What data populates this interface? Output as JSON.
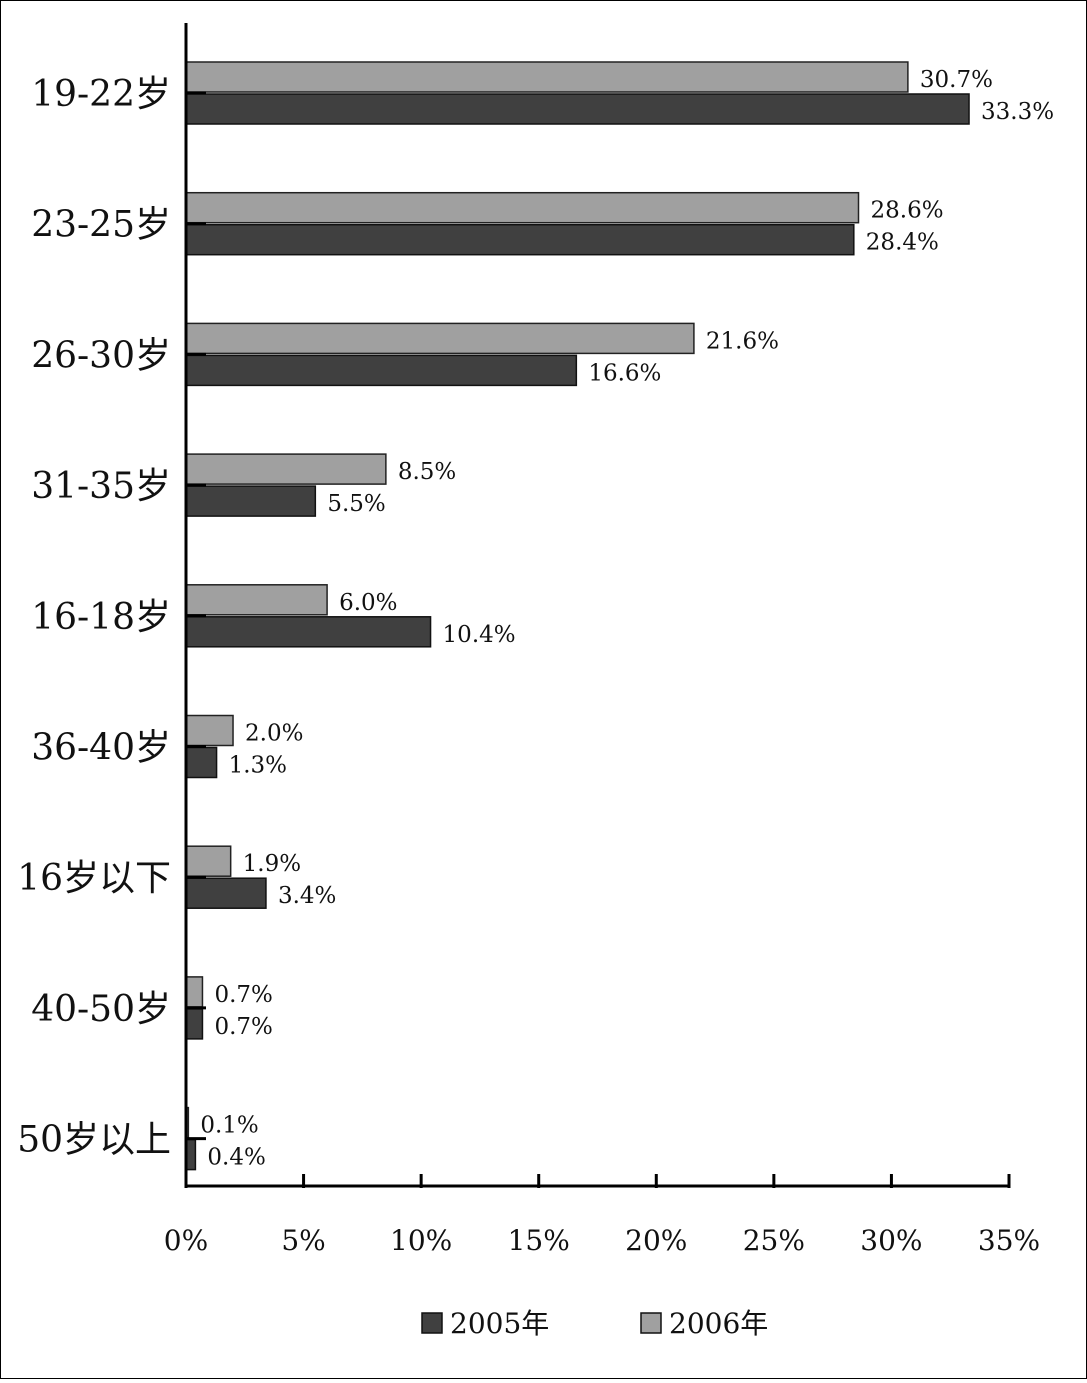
{
  "chart_data": {
    "type": "bar",
    "orientation": "horizontal",
    "categories": [
      "19-22岁",
      "23-25岁",
      "26-30岁",
      "31-35岁",
      "16-18岁",
      "36-40岁",
      "16岁以下",
      "40-50岁",
      "50岁以上"
    ],
    "series": [
      {
        "name": "2006年",
        "color": "#a0a0a0",
        "values": [
          30.7,
          28.6,
          21.6,
          8.5,
          6.0,
          2.0,
          1.9,
          0.7,
          0.1
        ],
        "labels": [
          "30.7%",
          "28.6%",
          "21.6%",
          "8.5%",
          "6.0%",
          "2.0%",
          "1.9%",
          "0.7%",
          "0.1%"
        ]
      },
      {
        "name": "2005年",
        "color": "#404040",
        "values": [
          33.3,
          28.4,
          16.6,
          5.5,
          10.4,
          1.3,
          3.4,
          0.7,
          0.4
        ],
        "labels": [
          "33.3%",
          "28.4%",
          "16.6%",
          "5.5%",
          "10.4%",
          "1.3%",
          "3.4%",
          "0.7%",
          "0.4%"
        ]
      }
    ],
    "xlim": [
      0,
      35
    ],
    "x_ticks": [
      0,
      5,
      10,
      15,
      20,
      25,
      30,
      35
    ],
    "x_tick_labels": [
      "0%",
      "5%",
      "10%",
      "15%",
      "20%",
      "25%",
      "30%",
      "35%"
    ],
    "grid": false,
    "legend": {
      "position": "bottom",
      "order": [
        "2005年",
        "2006年"
      ]
    }
  }
}
